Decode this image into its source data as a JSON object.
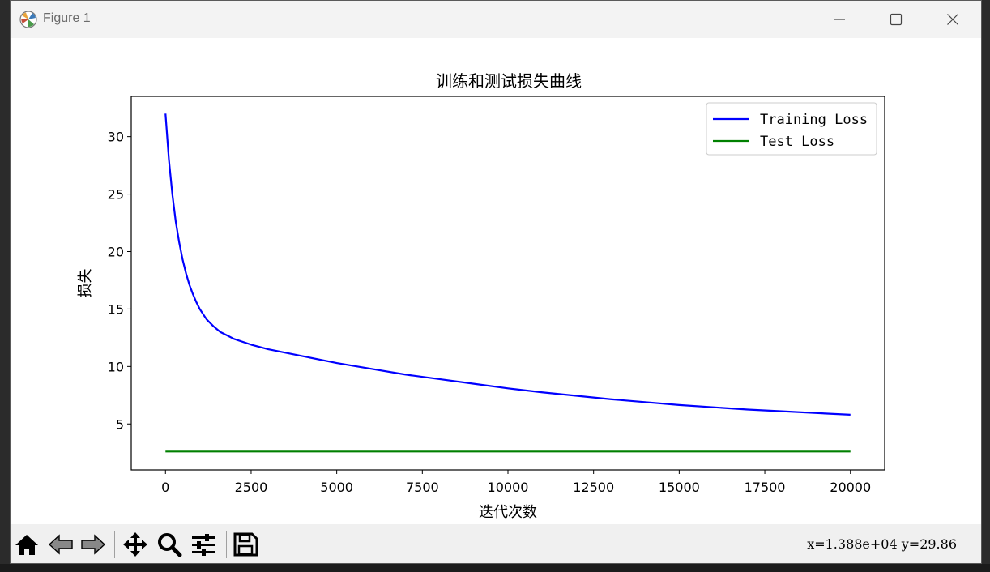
{
  "window": {
    "title": "Figure 1",
    "buttons": {
      "minimize": "minimize",
      "maximize": "maximize",
      "close": "close"
    }
  },
  "toolbar": {
    "icons": [
      "home-icon",
      "back-icon",
      "forward-icon",
      "pan-icon",
      "zoom-icon",
      "configure-subplots-icon",
      "save-icon"
    ],
    "coords": "x=1.388e+04 y=29.86"
  },
  "colors": {
    "training": "#0000ff",
    "test": "#008000"
  },
  "chart_data": {
    "type": "line",
    "title": "训练和测试损失曲线",
    "xlabel": "迭代次数",
    "ylabel": "损失",
    "xlim": [
      -1000,
      21000
    ],
    "ylim": [
      1.0,
      33.5
    ],
    "xticks": [
      0,
      2500,
      5000,
      7500,
      10000,
      12500,
      15000,
      17500,
      20000
    ],
    "yticks": [
      5,
      10,
      15,
      20,
      25,
      30
    ],
    "legend": "top-right",
    "grid": false,
    "series": [
      {
        "name": "Training Loss",
        "color": "#0000ff",
        "x": [
          0,
          100,
          200,
          300,
          400,
          500,
          600,
          700,
          800,
          900,
          1000,
          1200,
          1400,
          1600,
          1800,
          2000,
          2500,
          3000,
          3500,
          4000,
          5000,
          6000,
          7000,
          8000,
          9000,
          10000,
          11000,
          12000,
          13000,
          14000,
          15000,
          16000,
          17000,
          18000,
          19000,
          20000
        ],
        "y": [
          32.0,
          28.0,
          25.0,
          22.6,
          20.8,
          19.3,
          18.1,
          17.1,
          16.3,
          15.6,
          15.0,
          14.1,
          13.5,
          13.0,
          12.7,
          12.4,
          11.9,
          11.5,
          11.2,
          10.9,
          10.3,
          9.8,
          9.3,
          8.9,
          8.5,
          8.1,
          7.75,
          7.45,
          7.15,
          6.9,
          6.65,
          6.45,
          6.25,
          6.1,
          5.95,
          5.8
        ]
      },
      {
        "name": "Test Loss",
        "color": "#008000",
        "x": [
          0,
          20000
        ],
        "y": [
          2.6,
          2.6
        ]
      }
    ]
  }
}
